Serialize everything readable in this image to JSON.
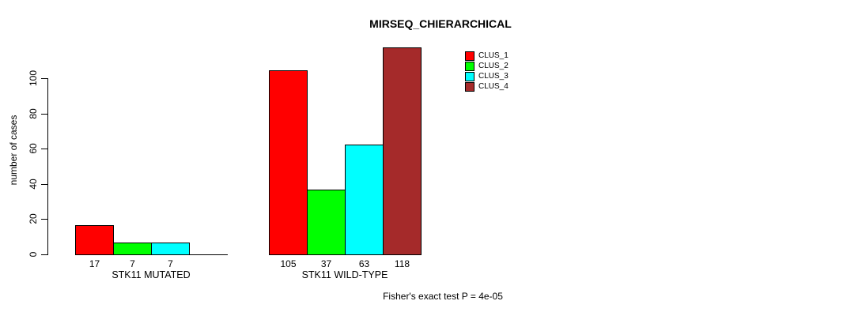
{
  "chart_data": {
    "type": "bar",
    "title": "MIRSEQ_CHIERARCHICAL",
    "ylabel": "number of cases",
    "xlabel": "",
    "groups": [
      "STK11 MUTATED",
      "STK11 WILD-TYPE"
    ],
    "series": [
      {
        "name": "CLUS_1",
        "color": "#FF0000",
        "values": [
          17,
          105
        ]
      },
      {
        "name": "CLUS_2",
        "color": "#00FF00",
        "values": [
          7,
          37
        ]
      },
      {
        "name": "CLUS_3",
        "color": "#00FFFF",
        "values": [
          7,
          63
        ]
      },
      {
        "name": "CLUS_4",
        "color": "#A52A2A",
        "values": [
          0,
          118
        ]
      }
    ],
    "yticks": [
      0,
      20,
      40,
      60,
      80,
      100
    ],
    "ylim": [
      0,
      118
    ],
    "grid": false,
    "legend_position": "top-right",
    "bar_value_labels_shown": true,
    "annotation": "Fisher's exact test P = 4e-05"
  }
}
